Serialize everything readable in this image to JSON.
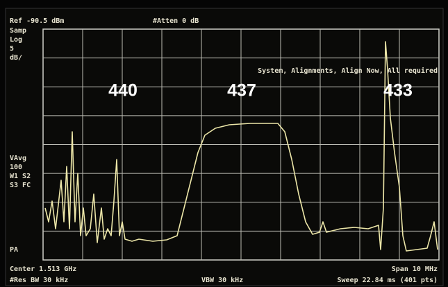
{
  "header": {
    "ref": "Ref -90.5 dBm",
    "atten": "#Atten 0 dB",
    "message": "System, Alignments, Align Now, All required"
  },
  "left_labels": [
    "Samp",
    "Log",
    "5",
    "dB/"
  ],
  "left_mid_labels": [
    "VAvg",
    "100",
    "W1 S2",
    "S3 FC"
  ],
  "left_bottom_label": "PA",
  "channels": [
    "440",
    "437",
    "433"
  ],
  "footer": {
    "center": "Center 1.513 GHz",
    "res_bw": "#Res BW 30 kHz",
    "vbw": "VBW 30 kHz",
    "span": "Span 10 MHz",
    "sweep": "Sweep 22.84 ms (401 pts)"
  }
}
